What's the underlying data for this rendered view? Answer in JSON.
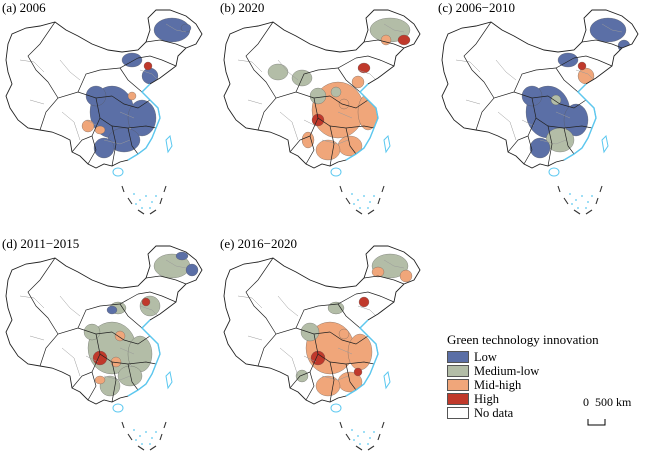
{
  "panels": [
    {
      "label": "(a) 2006"
    },
    {
      "label": "(b) 2020"
    },
    {
      "label": "(c) 2006−2010"
    },
    {
      "label": "(d) 2011−2015"
    },
    {
      "label": "(e) 2016−2020"
    }
  ],
  "legend": {
    "title": "Green technology innovation",
    "items": [
      {
        "label": "Low",
        "color": "#5b6fa6"
      },
      {
        "label": "Medium-low",
        "color": "#b3bda7"
      },
      {
        "label": "Mid-high",
        "color": "#f0a67a"
      },
      {
        "label": "High",
        "color": "#c0392b"
      },
      {
        "label": "No data",
        "color": "#ffffff"
      }
    ]
  },
  "scale": {
    "label": "0  500 km"
  },
  "colors": {
    "coast": "#5bc8f0",
    "border": "#222222",
    "admin": "#9a9a9a"
  }
}
